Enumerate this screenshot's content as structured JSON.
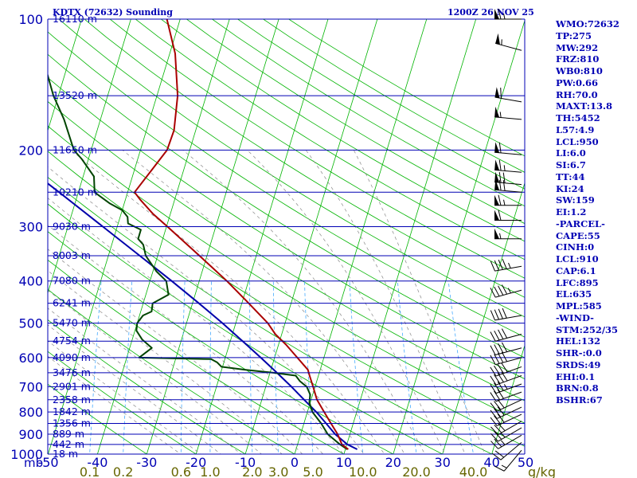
{
  "header": {
    "title": "KDTX (72632) Sounding",
    "datetime": "1200Z 26 NOV 25"
  },
  "colors": {
    "isobar": "#0000b4",
    "isotherm": "#00b400",
    "dry_adiabat": "#00b400",
    "moist_adiabat": "#888888",
    "mixing_ratio": "#44aaff",
    "temperature": "#aa0000",
    "dewpoint": "#004400",
    "parcel": "#0000aa",
    "wind_barb": "#000000",
    "label": "#0000b4",
    "mixing_label": "#666600"
  },
  "chart_data": {
    "type": "line",
    "title": "KDTX (72632) Sounding",
    "subtitle": "1200Z 26 NOV 25",
    "pressure_unit": "mb",
    "pressure_range": [
      1000,
      100
    ],
    "temperature_range": [
      -50,
      50
    ],
    "pressure_levels": [
      100,
      200,
      300,
      400,
      500,
      600,
      700,
      800,
      900,
      1000
    ],
    "pressure_labels": [
      "100",
      "200",
      "300",
      "400",
      "500",
      "600",
      "700",
      "800",
      "900",
      "1000"
    ],
    "height_levels": [
      {
        "p": 100,
        "label": "16110 m"
      },
      {
        "p": 150,
        "label": "13520 m"
      },
      {
        "p": 200,
        "label": "11650 m"
      },
      {
        "p": 250,
        "label": "10210 m"
      },
      {
        "p": 300,
        "label": "9030 m"
      },
      {
        "p": 350,
        "label": "8003 m"
      },
      {
        "p": 400,
        "label": "7080 m"
      },
      {
        "p": 450,
        "label": "6241 m"
      },
      {
        "p": 500,
        "label": "5470 m"
      },
      {
        "p": 550,
        "label": "4754 m"
      },
      {
        "p": 600,
        "label": "4090 m"
      },
      {
        "p": 650,
        "label": "3476 m"
      },
      {
        "p": 700,
        "label": "2901 m"
      },
      {
        "p": 750,
        "label": "2358 m"
      },
      {
        "p": 800,
        "label": "1842 m"
      },
      {
        "p": 850,
        "label": "1356 m"
      },
      {
        "p": 900,
        "label": "889 m"
      },
      {
        "p": 950,
        "label": "442 m"
      },
      {
        "p": 1000,
        "label": "18 m"
      }
    ],
    "temperature_ticks": [
      {
        "t": -50,
        "label": "-50"
      },
      {
        "t": -40,
        "label": "-40"
      },
      {
        "t": -30,
        "label": "-30"
      },
      {
        "t": -20,
        "label": "-20"
      },
      {
        "t": -10,
        "label": "-10"
      },
      {
        "t": 0,
        "label": "0"
      },
      {
        "t": 10,
        "label": "10"
      },
      {
        "t": 20,
        "label": "20"
      },
      {
        "t": 30,
        "label": "30"
      },
      {
        "t": 40,
        "label": "40"
      },
      {
        "t": 50,
        "label": "50"
      }
    ],
    "mixing_ratios": [
      {
        "w": 0.1,
        "label": "0.1"
      },
      {
        "w": 0.2,
        "label": "0.2"
      },
      {
        "w": 0.6,
        "label": "0.6"
      },
      {
        "w": 1.0,
        "label": "1.0"
      },
      {
        "w": 2.0,
        "label": "2.0"
      },
      {
        "w": 3.0,
        "label": "3.0"
      },
      {
        "w": 5.0,
        "label": "5.0"
      },
      {
        "w": 10.0,
        "label": "10.0"
      },
      {
        "w": 20.0,
        "label": "20.0"
      },
      {
        "w": 40.0,
        "label": "40.0"
      }
    ],
    "mixing_unit": "g/kg",
    "temperature_profile": [
      [
        975,
        10.6
      ],
      [
        950,
        9.0
      ],
      [
        900,
        7.5
      ],
      [
        850,
        5.5
      ],
      [
        800,
        3.4
      ],
      [
        750,
        1.2
      ],
      [
        700,
        -0.4
      ],
      [
        660,
        -1.8
      ],
      [
        640,
        -2.5
      ],
      [
        600,
        -5.4
      ],
      [
        560,
        -8.5
      ],
      [
        530,
        -11.3
      ],
      [
        500,
        -13.5
      ],
      [
        450,
        -18.6
      ],
      [
        400,
        -24.4
      ],
      [
        350,
        -31.5
      ],
      [
        300,
        -39.8
      ],
      [
        280,
        -43.6
      ],
      [
        260,
        -47.0
      ],
      [
        250,
        -48.6
      ],
      [
        220,
        -46.3
      ],
      [
        200,
        -44.6
      ],
      [
        180,
        -44.4
      ],
      [
        150,
        -45.8
      ],
      [
        120,
        -48.9
      ],
      [
        100,
        -52.7
      ]
    ],
    "dewpoint_profile": [
      [
        975,
        10.4
      ],
      [
        950,
        8.6
      ],
      [
        900,
        5.5
      ],
      [
        850,
        3.5
      ],
      [
        800,
        1.0
      ],
      [
        760,
        -0.2
      ],
      [
        730,
        -0.5
      ],
      [
        700,
        -1.7
      ],
      [
        680,
        -3.4
      ],
      [
        660,
        -4.6
      ],
      [
        650,
        -9.3
      ],
      [
        640,
        -15.1
      ],
      [
        630,
        -20.2
      ],
      [
        615,
        -21.4
      ],
      [
        605,
        -22.8
      ],
      [
        600,
        -37.5
      ],
      [
        570,
        -35.5
      ],
      [
        545,
        -38.0
      ],
      [
        520,
        -39.7
      ],
      [
        500,
        -40.0
      ],
      [
        480,
        -39.3
      ],
      [
        470,
        -37.8
      ],
      [
        450,
        -38.1
      ],
      [
        430,
        -35.4
      ],
      [
        400,
        -36.7
      ],
      [
        380,
        -39.3
      ],
      [
        350,
        -42.4
      ],
      [
        330,
        -43.6
      ],
      [
        320,
        -45.0
      ],
      [
        305,
        -45.0
      ],
      [
        295,
        -48.0
      ],
      [
        285,
        -48.5
      ],
      [
        275,
        -50.0
      ],
      [
        265,
        -53.0
      ],
      [
        250,
        -56.7
      ],
      [
        230,
        -57.8
      ],
      [
        210,
        -61.3
      ],
      [
        200,
        -63.5
      ],
      [
        170,
        -67.4
      ],
      [
        150,
        -71.0
      ],
      [
        120,
        -76.0
      ],
      [
        100,
        -79.8
      ]
    ],
    "parcel_profile": [
      [
        975,
        12.4
      ],
      [
        950,
        10.1
      ],
      [
        900,
        7.0
      ],
      [
        850,
        4.5
      ],
      [
        800,
        1.8
      ],
      [
        750,
        -1.4
      ],
      [
        700,
        -4.8
      ],
      [
        650,
        -8.6
      ],
      [
        600,
        -12.8
      ],
      [
        550,
        -17.5
      ],
      [
        500,
        -22.7
      ],
      [
        450,
        -28.7
      ],
      [
        400,
        -35.6
      ],
      [
        350,
        -43.6
      ],
      [
        300,
        -52.9
      ],
      [
        250,
        -63.9
      ],
      [
        200,
        -77.6
      ],
      [
        150,
        -94.6
      ],
      [
        120,
        -107.2
      ],
      [
        100,
        -116.4
      ]
    ],
    "wind_barbs": [
      {
        "p": 100,
        "dir": 270,
        "spd": 65
      },
      {
        "p": 118,
        "dir": 285,
        "spd": 55
      },
      {
        "p": 155,
        "dir": 280,
        "spd": 60
      },
      {
        "p": 170,
        "dir": 275,
        "spd": 55
      },
      {
        "p": 205,
        "dir": 275,
        "spd": 60
      },
      {
        "p": 225,
        "dir": 275,
        "spd": 65
      },
      {
        "p": 240,
        "dir": 275,
        "spd": 70
      },
      {
        "p": 250,
        "dir": 275,
        "spd": 70
      },
      {
        "p": 268,
        "dir": 270,
        "spd": 65
      },
      {
        "p": 290,
        "dir": 270,
        "spd": 60
      },
      {
        "p": 320,
        "dir": 270,
        "spd": 55
      },
      {
        "p": 370,
        "dir": 260,
        "spd": 45
      },
      {
        "p": 420,
        "dir": 255,
        "spd": 45
      },
      {
        "p": 480,
        "dir": 260,
        "spd": 40
      },
      {
        "p": 530,
        "dir": 255,
        "spd": 40
      },
      {
        "p": 570,
        "dir": 255,
        "spd": 40
      },
      {
        "p": 600,
        "dir": 255,
        "spd": 40
      },
      {
        "p": 630,
        "dir": 250,
        "spd": 40
      },
      {
        "p": 660,
        "dir": 250,
        "spd": 40
      },
      {
        "p": 690,
        "dir": 250,
        "spd": 35
      },
      {
        "p": 720,
        "dir": 250,
        "spd": 30
      },
      {
        "p": 750,
        "dir": 245,
        "spd": 30
      },
      {
        "p": 780,
        "dir": 245,
        "spd": 30
      },
      {
        "p": 810,
        "dir": 245,
        "spd": 30
      },
      {
        "p": 840,
        "dir": 240,
        "spd": 30
      },
      {
        "p": 870,
        "dir": 240,
        "spd": 25
      },
      {
        "p": 905,
        "dir": 240,
        "spd": 25
      },
      {
        "p": 940,
        "dir": 230,
        "spd": 20
      },
      {
        "p": 980,
        "dir": 220,
        "spd": 15
      }
    ]
  },
  "indices": [
    "WMO:72632",
    "TP:275",
    "MW:292",
    "FRZ:810",
    "WB0:810",
    "PW:0.66",
    "RH:70.0",
    "MAXT:13.8",
    "TH:5452",
    "L57:4.9",
    "LCL:950",
    "LI:6.0",
    "SI:6.7",
    "TT:44",
    "KI:24",
    "SW:159",
    "EI:1.2",
    "-PARCEL-",
    "CAPE:55",
    "CINH:0",
    "LCL:910",
    "CAP:6.1",
    "LFC:895",
    "EL:635",
    "MPL:585",
    "-WIND-",
    "STM:252/35",
    "HEL:132",
    "SHR-:0.0",
    "SRDS:49",
    "EHI:0.1",
    "BRN:0.8",
    "BSHR:67"
  ]
}
